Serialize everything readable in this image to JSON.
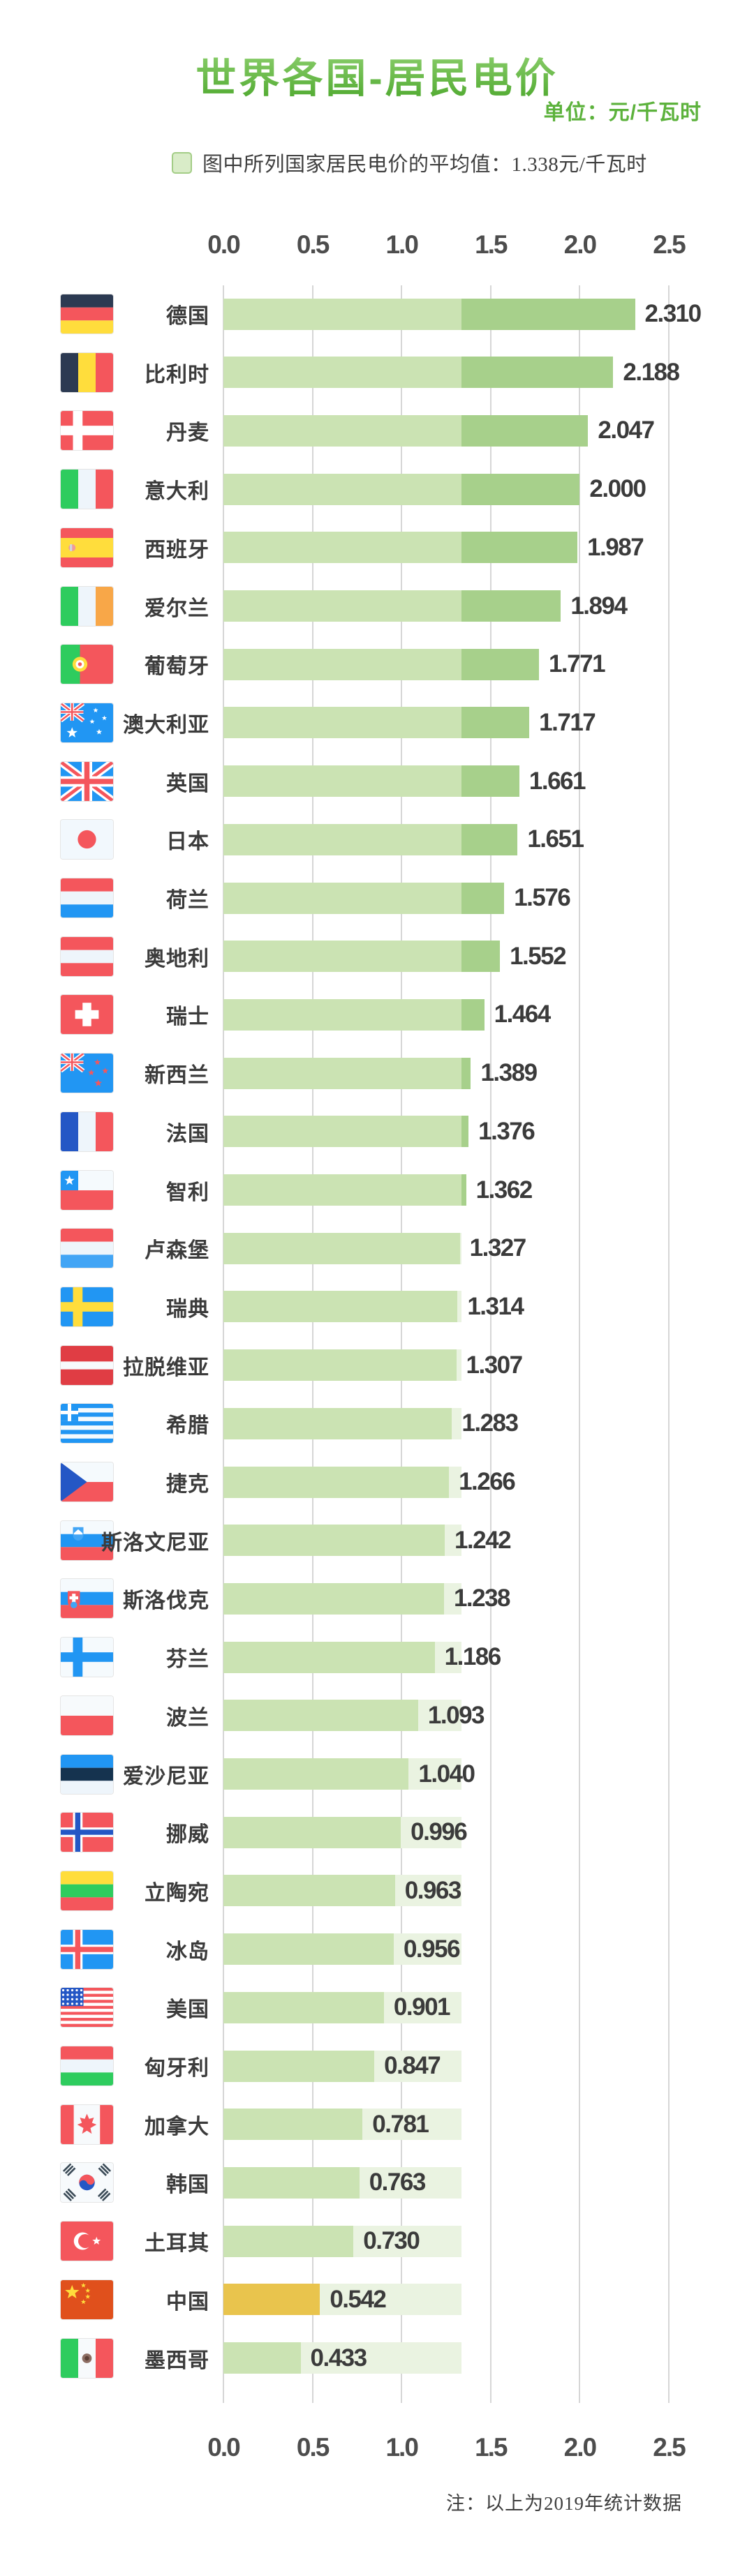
{
  "title": "世界各国-居民电价",
  "unit_label": "单位：元/千瓦时",
  "legend": {
    "swatch_color": "#d9ecc8",
    "label": "图中所列国家居民电价的平均值：1.338元/千瓦时"
  },
  "note": "注：以上为2019年统计数据",
  "chart_data": {
    "type": "bar",
    "orientation": "horizontal",
    "title": "世界各国-居民电价",
    "unit": "元/千瓦时",
    "year_note": "2019",
    "average": 1.338,
    "average_label": "1.338元/千瓦时",
    "xlim": [
      0,
      2.5
    ],
    "x_ticks": [
      "0.0",
      "0.5",
      "1.0",
      "1.5",
      "2.0",
      "2.5"
    ],
    "grid": true,
    "legend_position": "top-left",
    "highlight_country": "中国",
    "colors": {
      "below_average_fill": "#cbe3b3",
      "above_average_fill": "#a7d08b",
      "gap_to_average_fill": "#eaf3e1",
      "highlight_fill": "#e9c44d",
      "gridline": "#d6d6d6",
      "accent_green": "#5cb23c"
    },
    "rows": [
      {
        "country": "德国",
        "flag": "de",
        "value": 2.31,
        "label": "2.310"
      },
      {
        "country": "比利时",
        "flag": "be",
        "value": 2.188,
        "label": "2.188"
      },
      {
        "country": "丹麦",
        "flag": "dk",
        "value": 2.047,
        "label": "2.047"
      },
      {
        "country": "意大利",
        "flag": "it",
        "value": 2.0,
        "label": "2.000"
      },
      {
        "country": "西班牙",
        "flag": "es",
        "value": 1.987,
        "label": "1.987"
      },
      {
        "country": "爱尔兰",
        "flag": "ie",
        "value": 1.894,
        "label": "1.894"
      },
      {
        "country": "葡萄牙",
        "flag": "pt",
        "value": 1.771,
        "label": "1.771"
      },
      {
        "country": "澳大利亚",
        "flag": "au",
        "value": 1.717,
        "label": "1.717"
      },
      {
        "country": "英国",
        "flag": "gb",
        "value": 1.661,
        "label": "1.661"
      },
      {
        "country": "日本",
        "flag": "jp",
        "value": 1.651,
        "label": "1.651"
      },
      {
        "country": "荷兰",
        "flag": "nl",
        "value": 1.576,
        "label": "1.576"
      },
      {
        "country": "奥地利",
        "flag": "at",
        "value": 1.552,
        "label": "1.552"
      },
      {
        "country": "瑞士",
        "flag": "ch",
        "value": 1.464,
        "label": "1.464"
      },
      {
        "country": "新西兰",
        "flag": "nz",
        "value": 1.389,
        "label": "1.389"
      },
      {
        "country": "法国",
        "flag": "fr",
        "value": 1.376,
        "label": "1.376"
      },
      {
        "country": "智利",
        "flag": "cl",
        "value": 1.362,
        "label": "1.362"
      },
      {
        "country": "卢森堡",
        "flag": "lu",
        "value": 1.327,
        "label": "1.327"
      },
      {
        "country": "瑞典",
        "flag": "se",
        "value": 1.314,
        "label": "1.314"
      },
      {
        "country": "拉脱维亚",
        "flag": "lv",
        "value": 1.307,
        "label": "1.307"
      },
      {
        "country": "希腊",
        "flag": "gr",
        "value": 1.283,
        "label": "1.283"
      },
      {
        "country": "捷克",
        "flag": "cz",
        "value": 1.266,
        "label": "1.266"
      },
      {
        "country": "斯洛文尼亚",
        "flag": "si",
        "value": 1.242,
        "label": "1.242"
      },
      {
        "country": "斯洛伐克",
        "flag": "sk",
        "value": 1.238,
        "label": "1.238"
      },
      {
        "country": "芬兰",
        "flag": "fi",
        "value": 1.186,
        "label": "1.186"
      },
      {
        "country": "波兰",
        "flag": "pl",
        "value": 1.093,
        "label": "1.093"
      },
      {
        "country": "爱沙尼亚",
        "flag": "ee",
        "value": 1.04,
        "label": "1.040"
      },
      {
        "country": "挪威",
        "flag": "no",
        "value": 0.996,
        "label": "0.996"
      },
      {
        "country": "立陶宛",
        "flag": "lt",
        "value": 0.963,
        "label": "0.963"
      },
      {
        "country": "冰岛",
        "flag": "is",
        "value": 0.956,
        "label": "0.956"
      },
      {
        "country": "美国",
        "flag": "us",
        "value": 0.901,
        "label": "0.901"
      },
      {
        "country": "匈牙利",
        "flag": "hu",
        "value": 0.847,
        "label": "0.847"
      },
      {
        "country": "加拿大",
        "flag": "ca",
        "value": 0.781,
        "label": "0.781"
      },
      {
        "country": "韩国",
        "flag": "kr",
        "value": 0.763,
        "label": "0.763"
      },
      {
        "country": "土耳其",
        "flag": "tr",
        "value": 0.73,
        "label": "0.730"
      },
      {
        "country": "中国",
        "flag": "cn",
        "value": 0.542,
        "label": "0.542",
        "highlight": true
      },
      {
        "country": "墨西哥",
        "flag": "mx",
        "value": 0.433,
        "label": "0.433"
      }
    ]
  }
}
